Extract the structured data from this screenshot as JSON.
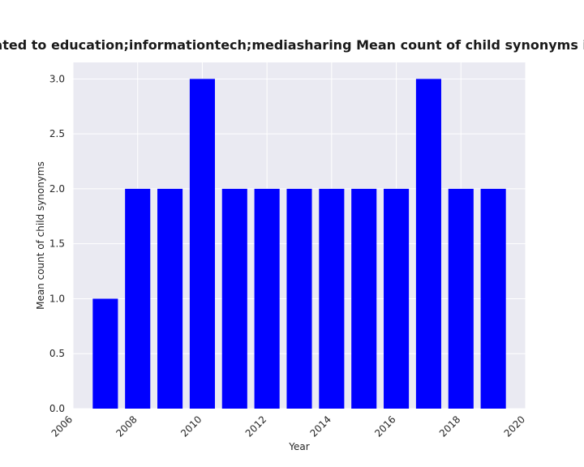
{
  "chart_data": {
    "type": "bar",
    "title": "are related to education;informationtech;mediasharing Mean count of child synonyms in priva",
    "xlabel": "Year",
    "ylabel": "Mean count of child synonyms",
    "x": [
      2007,
      2008,
      2009,
      2010,
      2011,
      2012,
      2013,
      2014,
      2015,
      2016,
      2017,
      2018,
      2019
    ],
    "values": [
      1,
      2,
      2,
      3,
      2,
      2,
      2,
      2,
      2,
      2,
      3,
      2,
      2
    ],
    "xlim": [
      2006,
      2020
    ],
    "ylim": [
      0,
      3.15
    ],
    "xticks": [
      "2006",
      "2008",
      "2010",
      "2012",
      "2014",
      "2016",
      "2018",
      "2020"
    ],
    "yticks": [
      "0.0",
      "0.5",
      "1.0",
      "1.5",
      "2.0",
      "2.5",
      "3.0"
    ],
    "grid": true,
    "legend": "none",
    "colors": {
      "bar": "#0000ff",
      "plot_background": "#eaeaf2",
      "grid": "#ffffff"
    }
  }
}
